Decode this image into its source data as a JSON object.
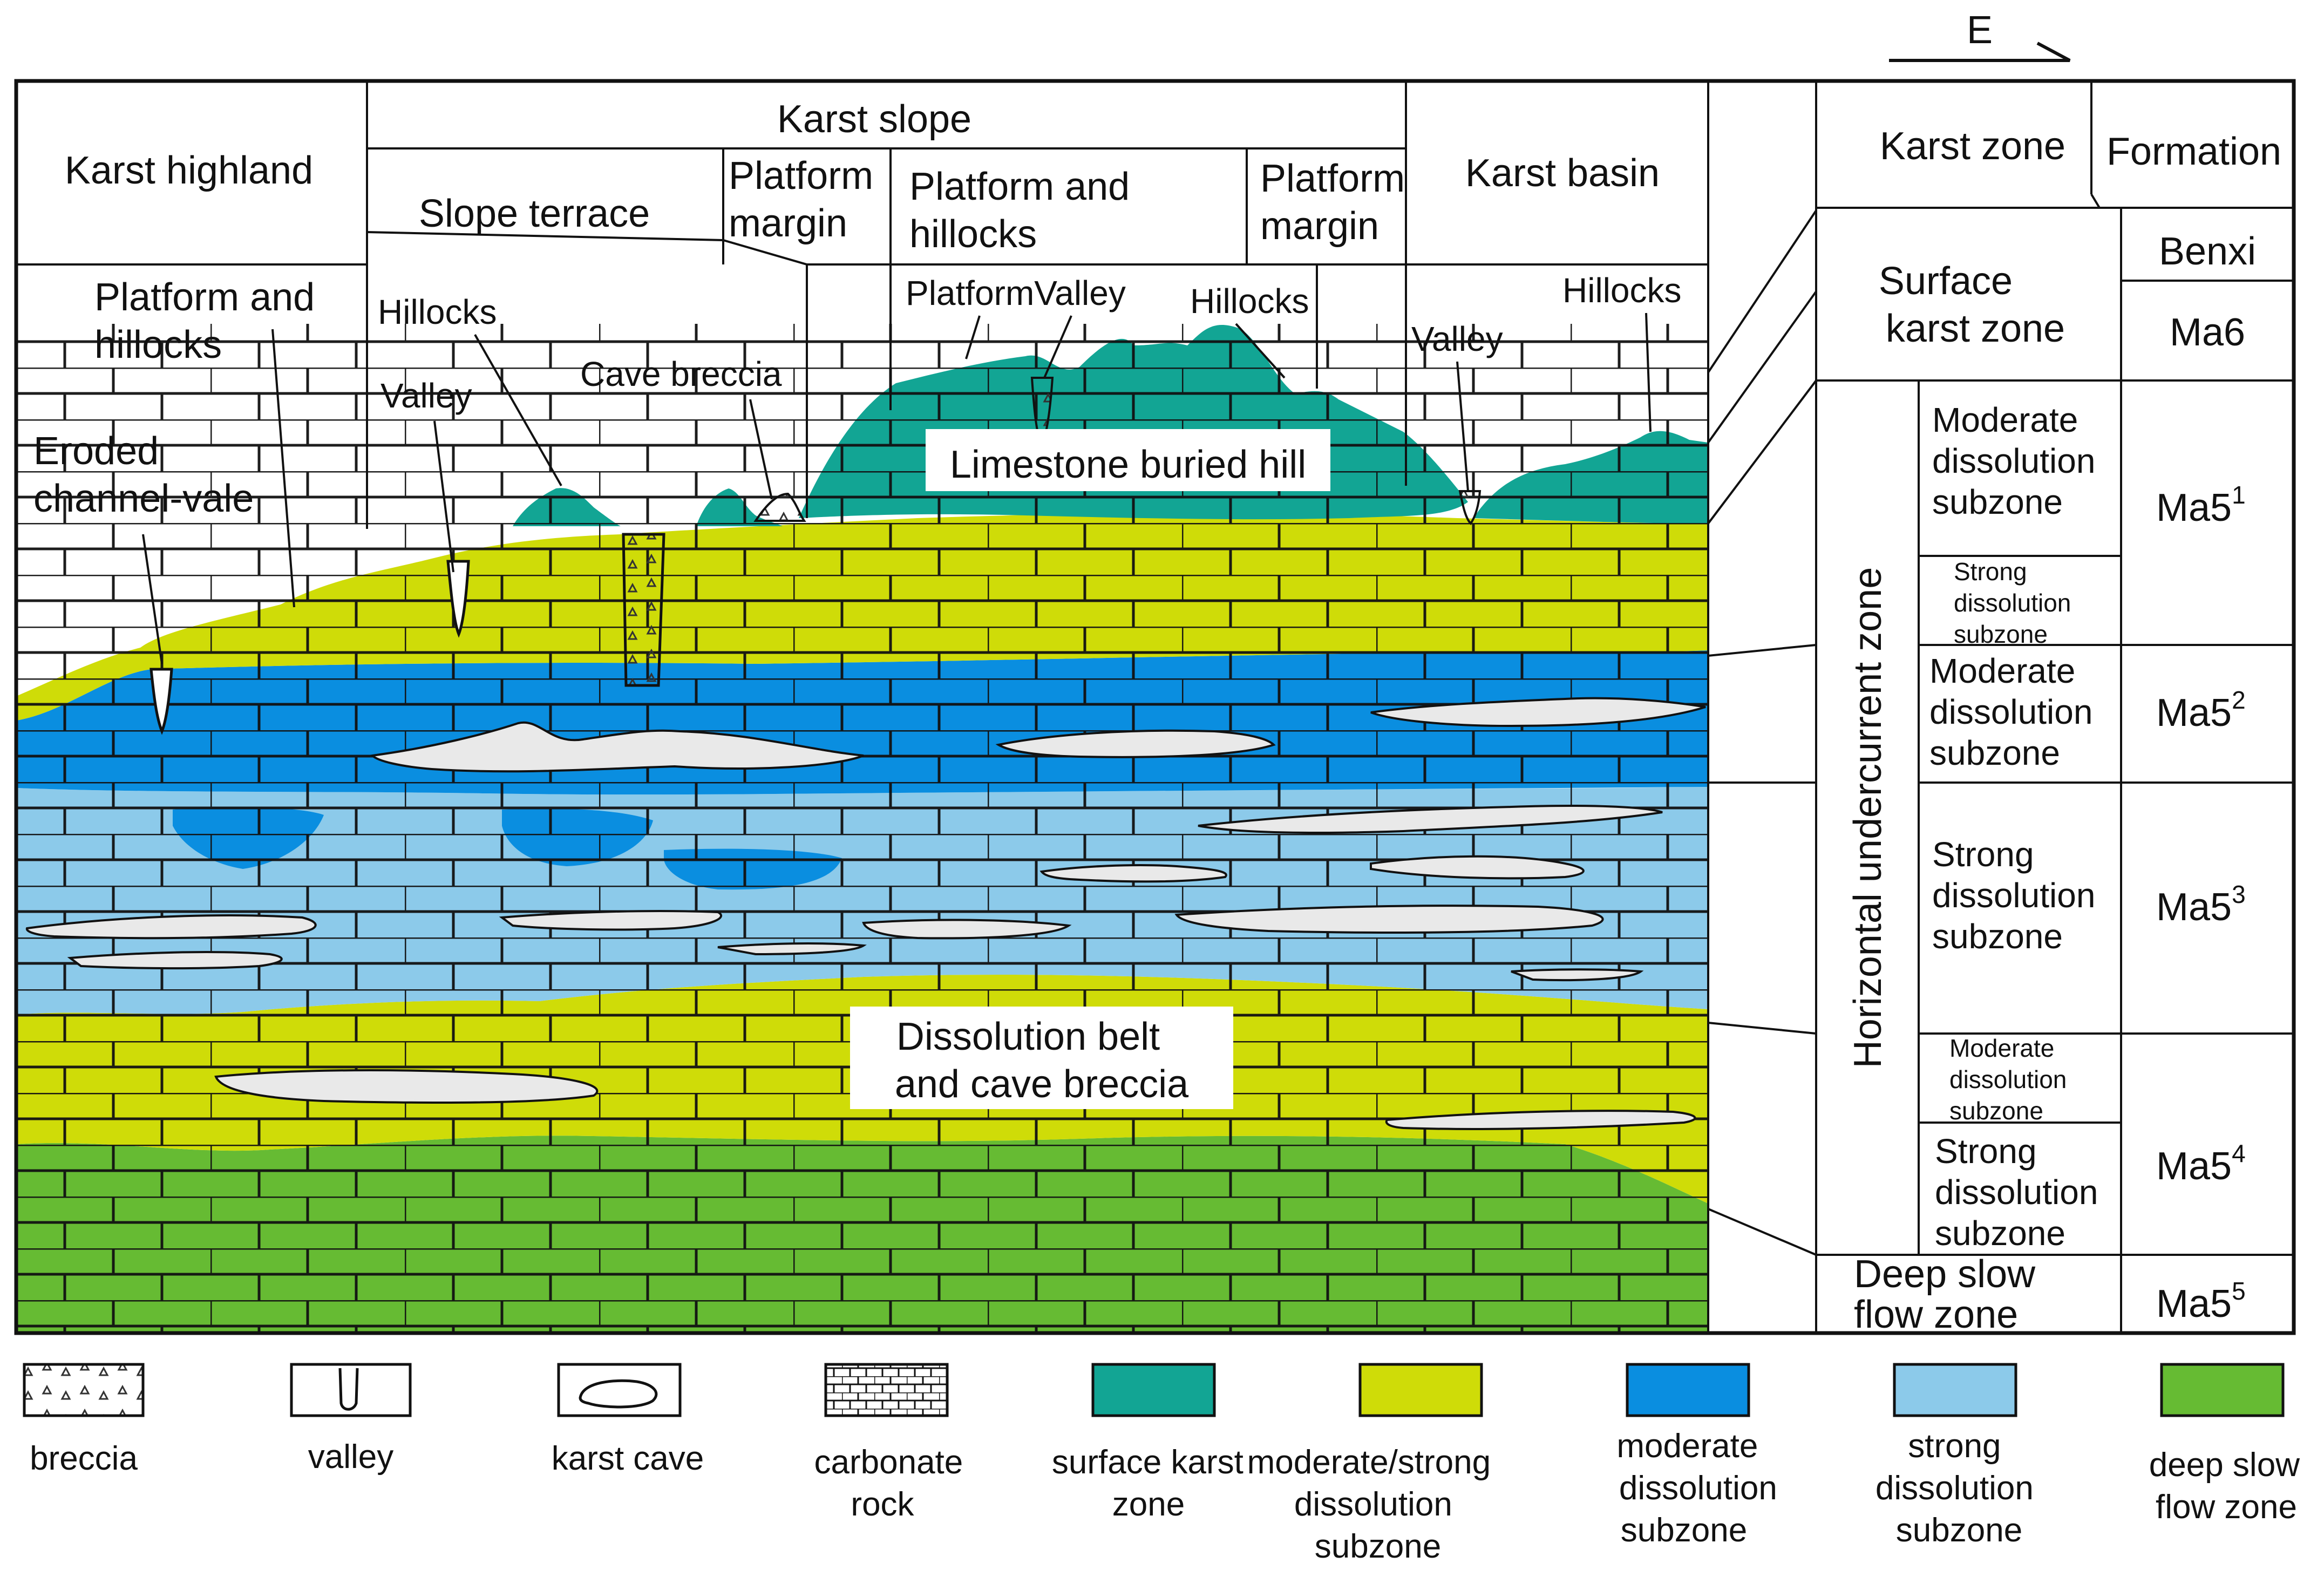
{
  "colors": {
    "surface": "#12a594",
    "moderate_strong": "#cfdc08",
    "moderate": "#0a8ee0",
    "strong": "#8ccaea",
    "deep": "#66bb33",
    "cave": "#e9e9e9"
  },
  "direction": "E",
  "header": {
    "karst_highland": "Karst highland",
    "karst_slope": "Karst slope",
    "slope_terrace": "Slope terrace",
    "platform_margin_left": [
      "Platform",
      "margin"
    ],
    "platform_and_hillocks_top": [
      "Platform  and",
      "hillocks"
    ],
    "platform_margin_right": [
      "Platform",
      "margin"
    ],
    "karst_basin": "Karst basin"
  },
  "annotations": {
    "platform_and_hillocks": [
      "Platform  and",
      "hillocks"
    ],
    "hillocks_left": "Hillocks",
    "valley_left": "Valley",
    "cave_breccia": "Cave breccia",
    "platform_valley": "PlatformValley",
    "hillocks_mid": "Hillocks",
    "valley_right": "Valley",
    "hillocks_right": "Hillocks",
    "eroded_channel_vale": [
      "Eroded",
      "channel-vale"
    ],
    "limestone_buried_hill": "Limestone buried hill",
    "dissolution_belt": [
      "Dissolution belt",
      "and cave breccia"
    ]
  },
  "table": {
    "header_karst_zone": "Karst zone",
    "header_formation": "Formation",
    "surface_karst_zone": [
      "Surface",
      "karst zone"
    ],
    "benxi": "Benxi",
    "ma6": "Ma6",
    "horizontal_zone": "Horizontal undercurrent zone",
    "moderate_1": [
      "Moderate",
      "dissolution",
      "subzone"
    ],
    "strong_1": [
      "Strong",
      "dissolution",
      "subzone"
    ],
    "moderate_2": [
      "Moderate",
      "dissolution",
      "subzone"
    ],
    "strong_2": [
      "Strong",
      "dissolution",
      "subzone"
    ],
    "moderate_3": [
      "Moderate",
      "dissolution",
      "subzone"
    ],
    "strong_3": [
      "Strong",
      "dissolution",
      "subzone"
    ],
    "deep_slow": [
      "Deep slow",
      "flow zone"
    ],
    "formations": [
      {
        "base": "Ma5",
        "sup": "1"
      },
      {
        "base": "Ma5",
        "sup": "2"
      },
      {
        "base": "Ma5",
        "sup": "3"
      },
      {
        "base": "Ma5",
        "sup": "4"
      },
      {
        "base": "Ma5",
        "sup": "5"
      }
    ]
  },
  "legend": [
    {
      "id": "breccia",
      "lines": [
        "breccia"
      ]
    },
    {
      "id": "valley",
      "lines": [
        "valley"
      ]
    },
    {
      "id": "karst-cave",
      "lines": [
        "karst cave"
      ]
    },
    {
      "id": "carbonate-rock",
      "lines": [
        "carbonate",
        "rock"
      ]
    },
    {
      "id": "surface-karst-zone",
      "lines": [
        "surface karst",
        "zone"
      ]
    },
    {
      "id": "moderate-strong",
      "lines": [
        "moderate/strong",
        "dissolution",
        "subzone"
      ]
    },
    {
      "id": "moderate-subzone",
      "lines": [
        "moderate",
        "dissolution",
        "subzone"
      ]
    },
    {
      "id": "strong-subzone",
      "lines": [
        "strong",
        "dissolution",
        "subzone"
      ]
    },
    {
      "id": "deep-slow",
      "lines": [
        "deep slow",
        "flow zone"
      ]
    }
  ]
}
